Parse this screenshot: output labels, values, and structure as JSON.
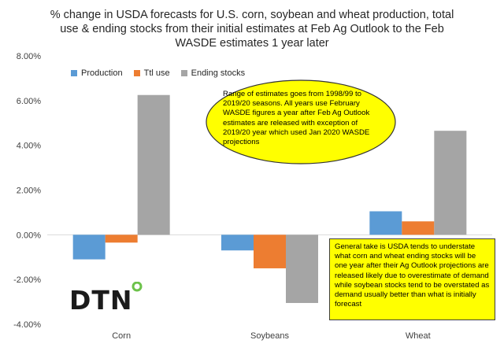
{
  "chart_data": {
    "type": "bar",
    "title": "% change in USDA forecasts for U.S. corn, soybean and wheat production, total use & ending stocks from their initial estimates at Feb Ag Outlook to the Feb WASDE estimates 1 year later",
    "title_lines": [
      "%  change in USDA forecasts for U.S. corn, soybean and wheat production, total",
      "use &  ending stocks from their initial estimates at Feb Ag Outlook to the Feb",
      "WASDE  estimates 1 year later"
    ],
    "categories": [
      "Corn",
      "Soybeans",
      "Wheat"
    ],
    "series": [
      {
        "name": "Production",
        "color": "#5b9bd5",
        "values": [
          -1.1,
          -0.7,
          1.05
        ]
      },
      {
        "name": "Ttl use",
        "color": "#ed7d31",
        "values": [
          -0.35,
          -1.5,
          0.6
        ]
      },
      {
        "name": "Ending stocks",
        "color": "#a5a5a5",
        "values": [
          6.25,
          -3.05,
          4.65
        ]
      }
    ],
    "ylim": [
      -4,
      8
    ],
    "yticks": [
      "-4.00%",
      "-2.00%",
      "0.00%",
      "2.00%",
      "4.00%",
      "6.00%",
      "8.00%"
    ],
    "ytick_values": [
      -4,
      -2,
      0,
      2,
      4,
      6,
      8
    ],
    "grid": false,
    "legend_position": "top-left"
  },
  "annotations": {
    "ellipse_note": "Range of  estimates goes from 1998/99 to 2019/20 seasons. All years use February WASDE figures a year after Feb Ag Outlook estimates are released with exception of 2019/20 year which used Jan 2020 WASDE projections",
    "box_note": "General take is USDA tends to understate what corn and wheat ending stocks will be one year after their Ag Outlook projections are released likely due to overestimate of demand while soybean stocks tend to be overstated as demand usually better than what is initially forecast",
    "ellipse_color": "#ffff00",
    "box_color": "#ffff00"
  },
  "logo": {
    "text": "DTN",
    "dot_color": "#6cc24a"
  }
}
